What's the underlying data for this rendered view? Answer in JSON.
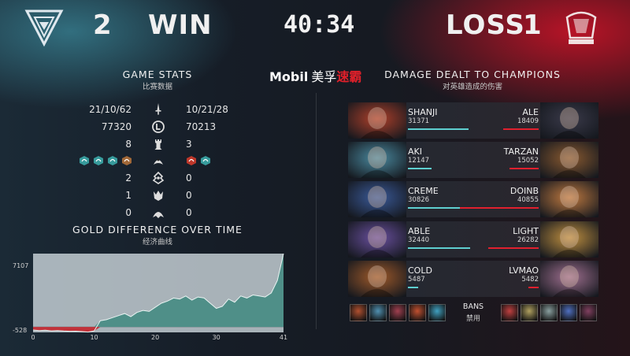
{
  "header": {
    "left_team": {
      "logo": "tes-logo",
      "score": "2",
      "result": "WIN"
    },
    "right_team": {
      "logo": "lng-logo",
      "score": "1",
      "result": "LOSS"
    },
    "clock": "40:34",
    "sponsor": {
      "brand": "Mobil",
      "text_a": "美孚",
      "text_b": "速霸"
    }
  },
  "game_stats": {
    "title": "GAME STATS",
    "subtitle": "比赛数据",
    "rows": [
      {
        "left": "21/10/62",
        "icon": "sword-icon",
        "right": "10/21/28"
      },
      {
        "left": "77320",
        "icon": "gold-icon",
        "right": "70213"
      },
      {
        "left": "8",
        "icon": "tower-icon",
        "right": "3"
      },
      {
        "left": "",
        "icon": "dragon-icon",
        "right": ""
      },
      {
        "left": "2",
        "icon": "herald-icon",
        "right": "0"
      },
      {
        "left": "1",
        "icon": "baron-icon",
        "right": "0"
      },
      {
        "left": "0",
        "icon": "elder-dragon-icon",
        "right": "0"
      }
    ],
    "left_dragons": [
      "#3ba8a8",
      "#3ba8a8",
      "#3ba8a8",
      "#b0703a"
    ],
    "right_dragons": [
      "#d03a2a",
      "#3ba8a8"
    ]
  },
  "gold_diff": {
    "title": "GOLD DIFFERENCE OVER TIME",
    "subtitle": "经济曲线",
    "chart_data": {
      "type": "area",
      "x": [
        0,
        1,
        2,
        3,
        4,
        5,
        6,
        7,
        8,
        9,
        10,
        11,
        12,
        13,
        14,
        15,
        16,
        17,
        18,
        19,
        20,
        21,
        22,
        23,
        24,
        25,
        26,
        27,
        28,
        29,
        30,
        31,
        32,
        33,
        34,
        35,
        36,
        37,
        38,
        39,
        40,
        41
      ],
      "y": [
        -300,
        -350,
        -320,
        -380,
        -360,
        -400,
        -420,
        -410,
        -450,
        -500,
        -380,
        600,
        700,
        900,
        1100,
        1300,
        1000,
        1400,
        1600,
        1500,
        1900,
        2300,
        2500,
        2800,
        2700,
        3000,
        2600,
        2900,
        2800,
        2300,
        1800,
        2000,
        2700,
        2400,
        3000,
        2800,
        3100,
        3000,
        2900,
        3300,
        4500,
        7107
      ],
      "ylim": [
        -528,
        7107
      ],
      "y_tick_labels": [
        "7107",
        "-528"
      ],
      "x_tick_labels": [
        "0",
        "10",
        "20",
        "30",
        "41"
      ],
      "x_ticks": [
        0,
        10,
        20,
        30,
        41
      ]
    }
  },
  "damage": {
    "title": "DAMAGE DEALT TO CHAMPIONS",
    "subtitle": "对英雄造成的伤害",
    "max": 40855,
    "players": [
      {
        "left_name": "SHANJI",
        "left_dmg": "31371",
        "left_val": 31371,
        "right_name": "ALE",
        "right_dmg": "18409",
        "right_val": 18409,
        "left_color": "#b0402a",
        "right_color": "#3a3a4a"
      },
      {
        "left_name": "AKI",
        "left_dmg": "12147",
        "left_val": 12147,
        "right_name": "TARZAN",
        "right_dmg": "15052",
        "right_val": 15052,
        "left_color": "#4a8aa0",
        "right_color": "#8a5a30"
      },
      {
        "left_name": "CREME",
        "left_dmg": "30826",
        "left_val": 30826,
        "right_name": "DOINB",
        "right_dmg": "40855",
        "right_val": 40855,
        "left_color": "#3a5a9a",
        "right_color": "#c07a40"
      },
      {
        "left_name": "ABLE",
        "left_dmg": "32440",
        "left_val": 32440,
        "right_name": "LIGHT",
        "right_dmg": "26282",
        "right_val": 26282,
        "left_color": "#6a50a0",
        "right_color": "#c09040"
      },
      {
        "left_name": "COLD",
        "left_dmg": "5487",
        "left_val": 5487,
        "right_name": "LVMAO",
        "right_dmg": "5482",
        "right_val": 5482,
        "left_color": "#a05a2a",
        "right_color": "#a07090"
      }
    ]
  },
  "bans": {
    "label": "BANS",
    "sub": "禁用",
    "left": [
      "#b05030",
      "#5090b0",
      "#a04050",
      "#c05030",
      "#40a0c0"
    ],
    "right": [
      "#c04040",
      "#b0a060",
      "#8aa0a0",
      "#5070c0",
      "#804060"
    ]
  }
}
